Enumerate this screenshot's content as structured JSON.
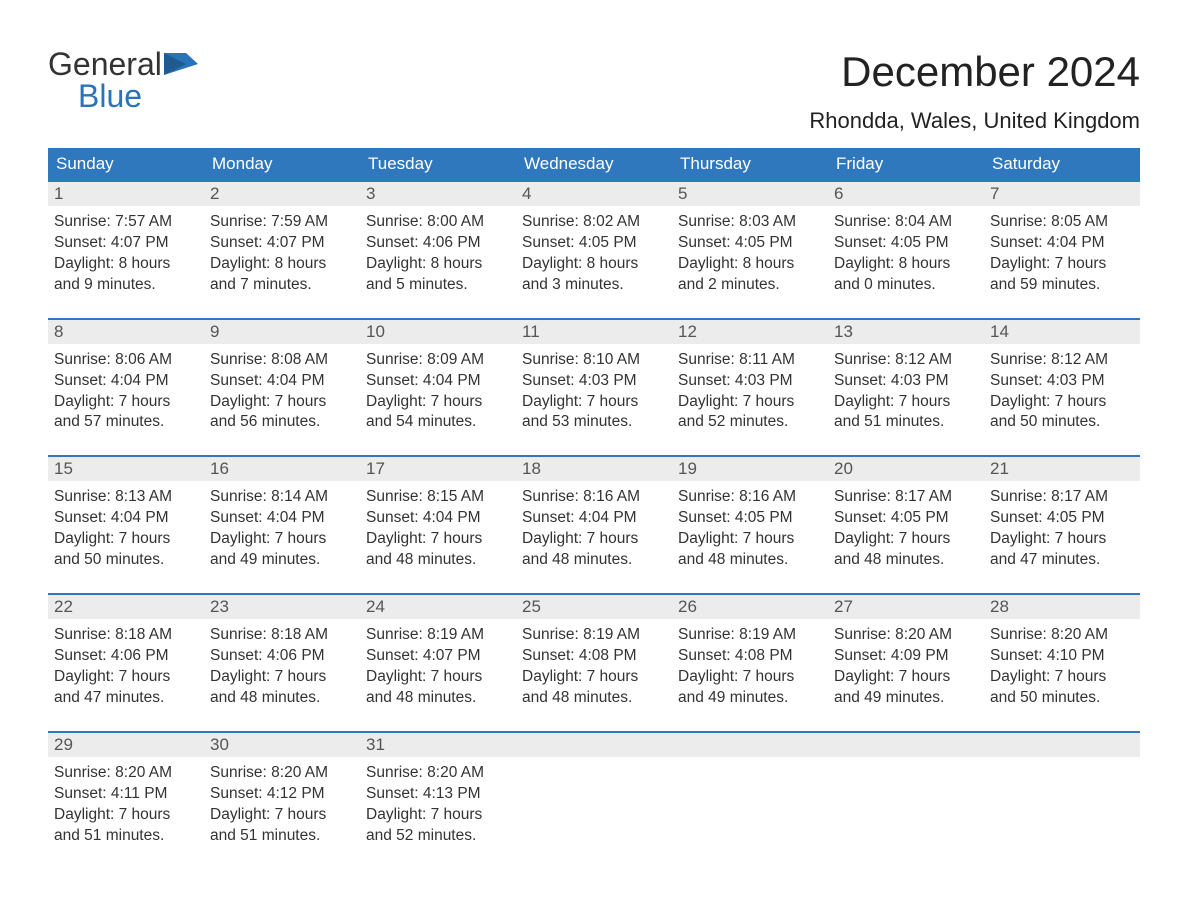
{
  "logo": {
    "text_top": "General",
    "text_bottom": "Blue",
    "top_color": "#333333",
    "bottom_color": "#2a73b8",
    "icon_color": "#2a73b8"
  },
  "header": {
    "title": "December 2024",
    "subtitle": "Rhondda, Wales, United Kingdom"
  },
  "colors": {
    "weekday_bg": "#2f78bd",
    "weekday_text": "#ffffff",
    "week_border": "#2f78bd",
    "daynum_bg": "#ececec",
    "daynum_text": "#555555",
    "body_text": "#333333",
    "page_bg": "#ffffff"
  },
  "typography": {
    "title_fontsize": 42,
    "subtitle_fontsize": 22,
    "weekday_fontsize": 17,
    "body_fontsize": 15.5
  },
  "weekdays": [
    "Sunday",
    "Monday",
    "Tuesday",
    "Wednesday",
    "Thursday",
    "Friday",
    "Saturday"
  ],
  "weeks": [
    [
      {
        "n": "1",
        "sunrise": "Sunrise: 7:57 AM",
        "sunset": "Sunset: 4:07 PM",
        "d1": "Daylight: 8 hours",
        "d2": "and 9 minutes."
      },
      {
        "n": "2",
        "sunrise": "Sunrise: 7:59 AM",
        "sunset": "Sunset: 4:07 PM",
        "d1": "Daylight: 8 hours",
        "d2": "and 7 minutes."
      },
      {
        "n": "3",
        "sunrise": "Sunrise: 8:00 AM",
        "sunset": "Sunset: 4:06 PM",
        "d1": "Daylight: 8 hours",
        "d2": "and 5 minutes."
      },
      {
        "n": "4",
        "sunrise": "Sunrise: 8:02 AM",
        "sunset": "Sunset: 4:05 PM",
        "d1": "Daylight: 8 hours",
        "d2": "and 3 minutes."
      },
      {
        "n": "5",
        "sunrise": "Sunrise: 8:03 AM",
        "sunset": "Sunset: 4:05 PM",
        "d1": "Daylight: 8 hours",
        "d2": "and 2 minutes."
      },
      {
        "n": "6",
        "sunrise": "Sunrise: 8:04 AM",
        "sunset": "Sunset: 4:05 PM",
        "d1": "Daylight: 8 hours",
        "d2": "and 0 minutes."
      },
      {
        "n": "7",
        "sunrise": "Sunrise: 8:05 AM",
        "sunset": "Sunset: 4:04 PM",
        "d1": "Daylight: 7 hours",
        "d2": "and 59 minutes."
      }
    ],
    [
      {
        "n": "8",
        "sunrise": "Sunrise: 8:06 AM",
        "sunset": "Sunset: 4:04 PM",
        "d1": "Daylight: 7 hours",
        "d2": "and 57 minutes."
      },
      {
        "n": "9",
        "sunrise": "Sunrise: 8:08 AM",
        "sunset": "Sunset: 4:04 PM",
        "d1": "Daylight: 7 hours",
        "d2": "and 56 minutes."
      },
      {
        "n": "10",
        "sunrise": "Sunrise: 8:09 AM",
        "sunset": "Sunset: 4:04 PM",
        "d1": "Daylight: 7 hours",
        "d2": "and 54 minutes."
      },
      {
        "n": "11",
        "sunrise": "Sunrise: 8:10 AM",
        "sunset": "Sunset: 4:03 PM",
        "d1": "Daylight: 7 hours",
        "d2": "and 53 minutes."
      },
      {
        "n": "12",
        "sunrise": "Sunrise: 8:11 AM",
        "sunset": "Sunset: 4:03 PM",
        "d1": "Daylight: 7 hours",
        "d2": "and 52 minutes."
      },
      {
        "n": "13",
        "sunrise": "Sunrise: 8:12 AM",
        "sunset": "Sunset: 4:03 PM",
        "d1": "Daylight: 7 hours",
        "d2": "and 51 minutes."
      },
      {
        "n": "14",
        "sunrise": "Sunrise: 8:12 AM",
        "sunset": "Sunset: 4:03 PM",
        "d1": "Daylight: 7 hours",
        "d2": "and 50 minutes."
      }
    ],
    [
      {
        "n": "15",
        "sunrise": "Sunrise: 8:13 AM",
        "sunset": "Sunset: 4:04 PM",
        "d1": "Daylight: 7 hours",
        "d2": "and 50 minutes."
      },
      {
        "n": "16",
        "sunrise": "Sunrise: 8:14 AM",
        "sunset": "Sunset: 4:04 PM",
        "d1": "Daylight: 7 hours",
        "d2": "and 49 minutes."
      },
      {
        "n": "17",
        "sunrise": "Sunrise: 8:15 AM",
        "sunset": "Sunset: 4:04 PM",
        "d1": "Daylight: 7 hours",
        "d2": "and 48 minutes."
      },
      {
        "n": "18",
        "sunrise": "Sunrise: 8:16 AM",
        "sunset": "Sunset: 4:04 PM",
        "d1": "Daylight: 7 hours",
        "d2": "and 48 minutes."
      },
      {
        "n": "19",
        "sunrise": "Sunrise: 8:16 AM",
        "sunset": "Sunset: 4:05 PM",
        "d1": "Daylight: 7 hours",
        "d2": "and 48 minutes."
      },
      {
        "n": "20",
        "sunrise": "Sunrise: 8:17 AM",
        "sunset": "Sunset: 4:05 PM",
        "d1": "Daylight: 7 hours",
        "d2": "and 48 minutes."
      },
      {
        "n": "21",
        "sunrise": "Sunrise: 8:17 AM",
        "sunset": "Sunset: 4:05 PM",
        "d1": "Daylight: 7 hours",
        "d2": "and 47 minutes."
      }
    ],
    [
      {
        "n": "22",
        "sunrise": "Sunrise: 8:18 AM",
        "sunset": "Sunset: 4:06 PM",
        "d1": "Daylight: 7 hours",
        "d2": "and 47 minutes."
      },
      {
        "n": "23",
        "sunrise": "Sunrise: 8:18 AM",
        "sunset": "Sunset: 4:06 PM",
        "d1": "Daylight: 7 hours",
        "d2": "and 48 minutes."
      },
      {
        "n": "24",
        "sunrise": "Sunrise: 8:19 AM",
        "sunset": "Sunset: 4:07 PM",
        "d1": "Daylight: 7 hours",
        "d2": "and 48 minutes."
      },
      {
        "n": "25",
        "sunrise": "Sunrise: 8:19 AM",
        "sunset": "Sunset: 4:08 PM",
        "d1": "Daylight: 7 hours",
        "d2": "and 48 minutes."
      },
      {
        "n": "26",
        "sunrise": "Sunrise: 8:19 AM",
        "sunset": "Sunset: 4:08 PM",
        "d1": "Daylight: 7 hours",
        "d2": "and 49 minutes."
      },
      {
        "n": "27",
        "sunrise": "Sunrise: 8:20 AM",
        "sunset": "Sunset: 4:09 PM",
        "d1": "Daylight: 7 hours",
        "d2": "and 49 minutes."
      },
      {
        "n": "28",
        "sunrise": "Sunrise: 8:20 AM",
        "sunset": "Sunset: 4:10 PM",
        "d1": "Daylight: 7 hours",
        "d2": "and 50 minutes."
      }
    ],
    [
      {
        "n": "29",
        "sunrise": "Sunrise: 8:20 AM",
        "sunset": "Sunset: 4:11 PM",
        "d1": "Daylight: 7 hours",
        "d2": "and 51 minutes."
      },
      {
        "n": "30",
        "sunrise": "Sunrise: 8:20 AM",
        "sunset": "Sunset: 4:12 PM",
        "d1": "Daylight: 7 hours",
        "d2": "and 51 minutes."
      },
      {
        "n": "31",
        "sunrise": "Sunrise: 8:20 AM",
        "sunset": "Sunset: 4:13 PM",
        "d1": "Daylight: 7 hours",
        "d2": "and 52 minutes."
      },
      {
        "empty": true
      },
      {
        "empty": true
      },
      {
        "empty": true
      },
      {
        "empty": true
      }
    ]
  ]
}
